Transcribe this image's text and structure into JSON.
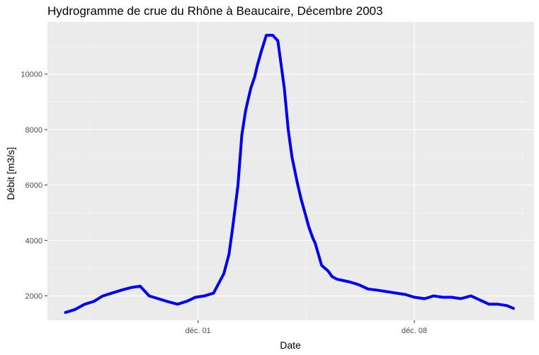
{
  "chart_data": {
    "type": "line",
    "title": "Hydrogramme de crue du Rhône à Beaucaire, Décembre 2003",
    "xlabel": "Date",
    "ylabel": "Débit [m3/s]",
    "x_tick_labels": [
      "déc. 01",
      "déc. 08"
    ],
    "x_tick_dates": [
      "2003-12-01",
      "2003-12-08"
    ],
    "y_ticks": [
      2000,
      4000,
      6000,
      8000,
      10000
    ],
    "xlim": [
      "2003-11-26T03:00",
      "2003-12-11T21:00"
    ],
    "ylim": [
      1120,
      11880
    ],
    "grid": true,
    "legend": "none",
    "colors": {
      "line": "#0000ff",
      "panel": "#ebebeb",
      "grid_major": "#ffffff",
      "grid_minor": "#f5f5f5"
    },
    "series": [
      {
        "color": "#0000ff",
        "x": [
          "2003-11-26T17:00",
          "2003-11-27T00:00",
          "2003-11-27T08:00",
          "2003-11-27T15:00",
          "2003-11-27T22:00",
          "2003-11-28T05:00",
          "2003-11-28T12:00",
          "2003-11-28T20:00",
          "2003-11-29T03:00",
          "2003-11-29T10:00",
          "2003-11-29T17:00",
          "2003-11-30T00:00",
          "2003-11-30T08:00",
          "2003-11-30T15:00",
          "2003-11-30T22:00",
          "2003-12-01T05:00",
          "2003-12-01T12:00",
          "2003-12-01T20:00",
          "2003-12-02T00:00",
          "2003-12-02T03:00",
          "2003-12-02T07:00",
          "2003-12-02T10:00",
          "2003-12-02T13:00",
          "2003-12-02T15:00",
          "2003-12-02T17:00",
          "2003-12-02T20:00",
          "2003-12-02T22:00",
          "2003-12-03T01:00",
          "2003-12-03T05:00",
          "2003-12-03T10:00",
          "2003-12-03T14:00",
          "2003-12-03T19:00",
          "2003-12-03T22:00",
          "2003-12-04T01:00",
          "2003-12-04T05:00",
          "2003-12-04T08:00",
          "2003-12-04T11:00",
          "2003-12-04T14:00",
          "2003-12-04T17:00",
          "2003-12-04T19:00",
          "2003-12-05T00:00",
          "2003-12-05T05:00",
          "2003-12-05T08:00",
          "2003-12-05T12:00",
          "2003-12-05T17:00",
          "2003-12-05T22:00",
          "2003-12-06T05:00",
          "2003-12-06T12:00",
          "2003-12-06T20:00",
          "2003-12-07T03:00",
          "2003-12-07T10:00",
          "2003-12-07T17:00",
          "2003-12-08T00:00",
          "2003-12-08T08:00",
          "2003-12-08T15:00",
          "2003-12-08T22:00",
          "2003-12-09T05:00",
          "2003-12-09T12:00",
          "2003-12-09T20:00",
          "2003-12-10T03:00",
          "2003-12-10T10:00",
          "2003-12-10T17:00",
          "2003-12-11T00:00",
          "2003-12-11T05:00"
        ],
        "values": [
          1400,
          1500,
          1700,
          1800,
          2000,
          2100,
          2200,
          2300,
          2350,
          2000,
          1900,
          1800,
          1700,
          1800,
          1950,
          2000,
          2100,
          2800,
          3500,
          4500,
          6000,
          7800,
          8700,
          9100,
          9500,
          9900,
          10300,
          10800,
          11400,
          11400,
          11200,
          9500,
          8000,
          7000,
          6100,
          5500,
          5000,
          4500,
          4100,
          3900,
          3100,
          2900,
          2700,
          2600,
          2550,
          2500,
          2400,
          2250,
          2200,
          2150,
          2100,
          2050,
          1950,
          1900,
          2000,
          1950,
          1950,
          1900,
          2000,
          1850,
          1700,
          1700,
          1650,
          1550
        ]
      }
    ]
  }
}
